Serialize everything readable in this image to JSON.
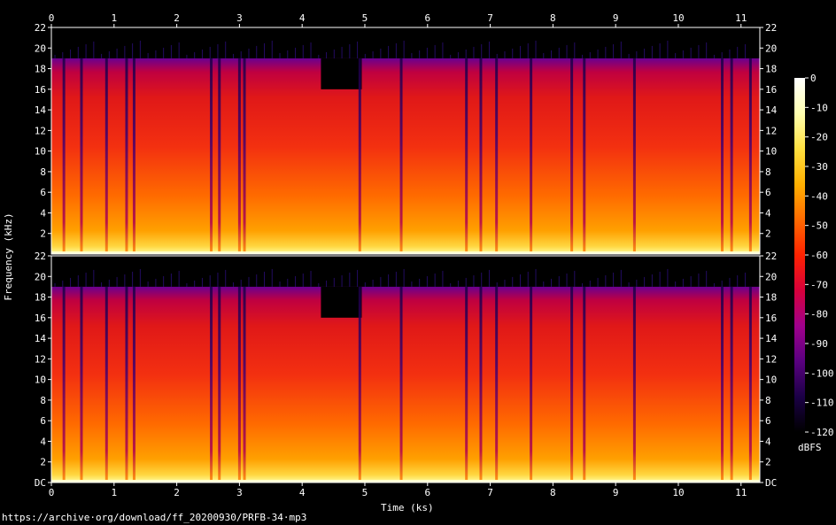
{
  "chart_data": {
    "type": "heatmap",
    "title": "",
    "xlabel": "Time (ks)",
    "ylabel": "Frequency (kHz)",
    "colorbar_label": "dBFS",
    "channels": 2,
    "x_ticks": [
      "0",
      "1",
      "2",
      "3",
      "4",
      "5",
      "6",
      "7",
      "8",
      "9",
      "10",
      "11"
    ],
    "y_ticks_top": [
      "22",
      "20",
      "18",
      "16",
      "14",
      "12",
      "10",
      "8",
      "6",
      "4",
      "2"
    ],
    "y_ticks_bottom": [
      "22",
      "20",
      "18",
      "16",
      "14",
      "12",
      "10",
      "8",
      "6",
      "4",
      "2",
      "DC"
    ],
    "x_range": [
      0,
      11.3
    ],
    "y_range_khz": [
      0,
      22
    ],
    "colorbar_ticks": [
      "0",
      "-10",
      "-20",
      "-30",
      "-40",
      "-50",
      "-60",
      "-70",
      "-80",
      "-90",
      "-100",
      "-110",
      "-120"
    ],
    "colorbar_range_dbfs": [
      -120,
      0
    ],
    "lowpass_khz": 19,
    "segments": [
      {
        "start_ks": 4.3,
        "end_ks": 4.95,
        "lowpass_khz": 16
      }
    ],
    "gaps_ks": [
      0.2,
      0.48,
      0.88,
      1.2,
      1.32,
      2.55,
      2.68,
      3.0,
      3.08,
      4.92,
      5.58,
      6.62,
      6.85,
      7.1,
      7.65,
      8.3,
      8.5,
      9.3,
      10.7,
      10.85,
      11.15
    ],
    "colormap": [
      "#000000",
      "#1b0046",
      "#5a0080",
      "#a0008c",
      "#d8003a",
      "#ff2200",
      "#ff6a00",
      "#ffb000",
      "#ffe040",
      "#ffffb0",
      "#ffffff"
    ]
  },
  "footer": {
    "source_url": "https://archive·org/download/ff_20200930/PRFB-34·mp3"
  }
}
